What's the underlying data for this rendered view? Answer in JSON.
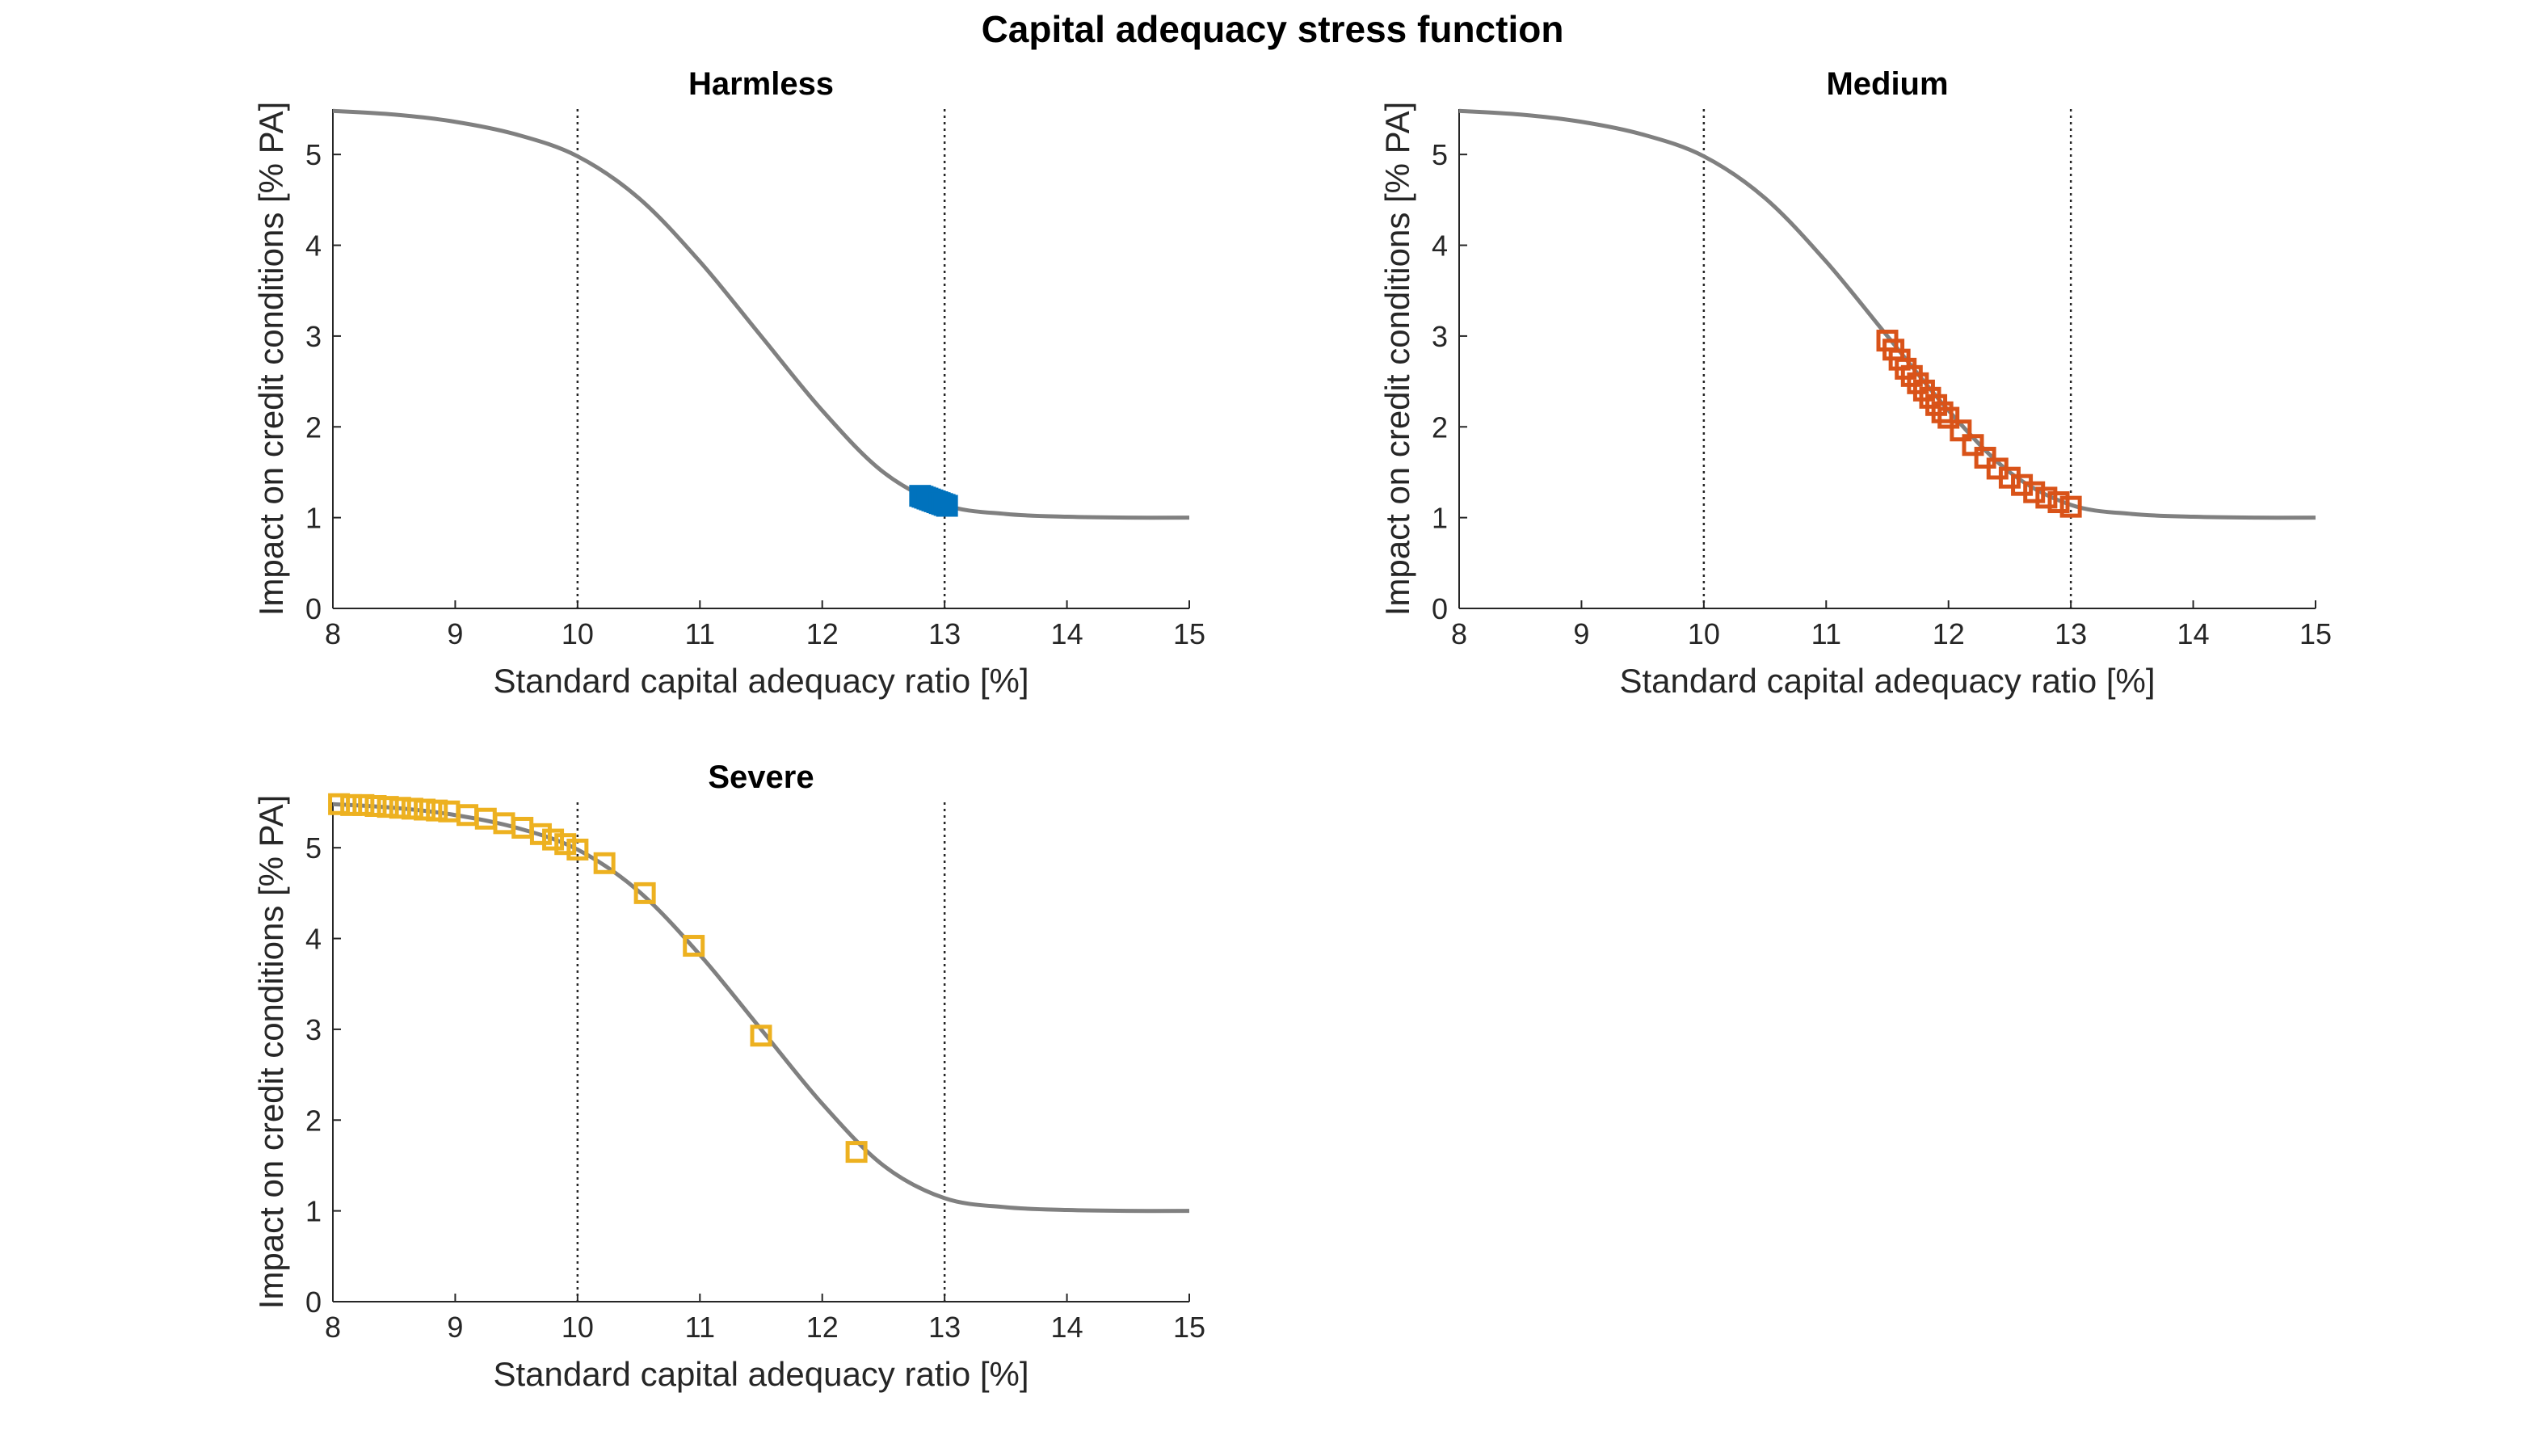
{
  "figure": {
    "title": "Capital adequacy stress function"
  },
  "chart_data": [
    {
      "type": "line",
      "title": "Harmless",
      "xlabel": "Standard capital adequacy ratio [%]",
      "ylabel": "Impact on credit conditions [% PA]",
      "xlim": [
        8,
        15
      ],
      "ylim": [
        0,
        5.5
      ],
      "xticks": [
        8,
        9,
        10,
        11,
        12,
        13,
        14,
        15
      ],
      "yticks": [
        0,
        1,
        2,
        3,
        4,
        5
      ],
      "grid": false,
      "reference_lines_x": [
        10,
        13
      ],
      "curve": {
        "x": [
          8.0,
          8.5,
          9.0,
          9.5,
          10.0,
          10.5,
          11.0,
          11.5,
          12.0,
          12.5,
          13.0,
          13.5,
          14.0,
          14.5,
          15.0
        ],
        "y": [
          5.48,
          5.44,
          5.36,
          5.22,
          4.98,
          4.52,
          3.82,
          3.0,
          2.18,
          1.5,
          1.14,
          1.04,
          1.01,
          1.0,
          1.0
        ],
        "color": "#808080"
      },
      "markers": {
        "marker": "square",
        "color": "#0072BD",
        "x": [
          12.8,
          12.82,
          12.84,
          12.86,
          12.88,
          12.9,
          12.92,
          12.94,
          12.96,
          12.98,
          13.0,
          13.02
        ],
        "y": [
          1.24,
          1.23,
          1.22,
          1.21,
          1.2,
          1.19,
          1.18,
          1.17,
          1.16,
          1.15,
          1.14,
          1.13
        ]
      }
    },
    {
      "type": "line",
      "title": "Medium",
      "xlabel": "Standard capital adequacy ratio [%]",
      "ylabel": "Impact on credit conditions [% PA]",
      "xlim": [
        8,
        15
      ],
      "ylim": [
        0,
        5.5
      ],
      "xticks": [
        8,
        9,
        10,
        11,
        12,
        13,
        14,
        15
      ],
      "yticks": [
        0,
        1,
        2,
        3,
        4,
        5
      ],
      "grid": false,
      "reference_lines_x": [
        10,
        13
      ],
      "curve": {
        "x": [
          8.0,
          8.5,
          9.0,
          9.5,
          10.0,
          10.5,
          11.0,
          11.5,
          12.0,
          12.5,
          13.0,
          13.5,
          14.0,
          14.5,
          15.0
        ],
        "y": [
          5.48,
          5.44,
          5.36,
          5.22,
          4.98,
          4.52,
          3.82,
          3.0,
          2.18,
          1.5,
          1.14,
          1.04,
          1.01,
          1.0,
          1.0
        ],
        "color": "#808080"
      },
      "markers": {
        "marker": "square",
        "color": "#D95319",
        "x": [
          11.5,
          11.55,
          11.6,
          11.65,
          11.7,
          11.75,
          11.8,
          11.85,
          11.9,
          11.95,
          12.0,
          12.1,
          12.2,
          12.3,
          12.4,
          12.5,
          12.6,
          12.7,
          12.8,
          12.9,
          13.0
        ],
        "y": [
          2.95,
          2.85,
          2.74,
          2.64,
          2.56,
          2.48,
          2.4,
          2.32,
          2.24,
          2.16,
          2.1,
          1.96,
          1.8,
          1.66,
          1.54,
          1.44,
          1.36,
          1.28,
          1.22,
          1.17,
          1.12
        ]
      }
    },
    {
      "type": "line",
      "title": "Severe",
      "xlabel": "Standard capital adequacy ratio [%]",
      "ylabel": "Impact on credit conditions [% PA]",
      "xlim": [
        8,
        15
      ],
      "ylim": [
        0,
        5.5
      ],
      "xticks": [
        8,
        9,
        10,
        11,
        12,
        13,
        14,
        15
      ],
      "yticks": [
        0,
        1,
        2,
        3,
        4,
        5
      ],
      "grid": false,
      "reference_lines_x": [
        10,
        13
      ],
      "curve": {
        "x": [
          8.0,
          8.5,
          9.0,
          9.5,
          10.0,
          10.5,
          11.0,
          11.5,
          12.0,
          12.5,
          13.0,
          13.5,
          14.0,
          14.5,
          15.0
        ],
        "y": [
          5.48,
          5.44,
          5.36,
          5.22,
          4.98,
          4.52,
          3.82,
          3.0,
          2.18,
          1.5,
          1.14,
          1.04,
          1.01,
          1.0,
          1.0
        ],
        "color": "#808080"
      },
      "markers": {
        "marker": "square",
        "color": "#EDB120",
        "x": [
          8.05,
          8.15,
          8.25,
          8.35,
          8.45,
          8.55,
          8.65,
          8.75,
          8.85,
          8.95,
          9.1,
          9.25,
          9.4,
          9.55,
          9.7,
          9.8,
          9.9,
          10.0,
          10.22,
          10.55,
          10.95,
          11.5,
          12.28
        ],
        "y": [
          5.48,
          5.47,
          5.47,
          5.46,
          5.45,
          5.44,
          5.43,
          5.42,
          5.41,
          5.4,
          5.36,
          5.32,
          5.27,
          5.22,
          5.15,
          5.09,
          5.04,
          4.98,
          4.83,
          4.5,
          3.92,
          2.93,
          1.65
        ]
      }
    }
  ]
}
